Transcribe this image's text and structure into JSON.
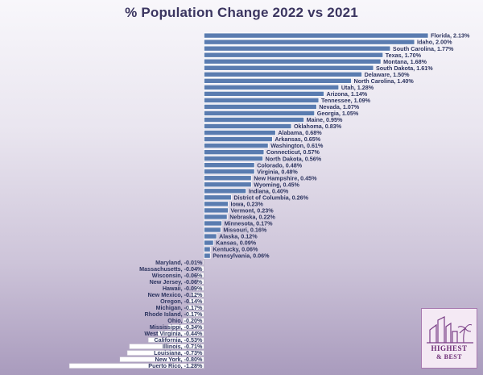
{
  "chart_data": {
    "type": "bar",
    "orientation": "horizontal",
    "title": "% Population Change 2022 vs 2021",
    "label_format": "{category}, {value}%",
    "categories": [
      "Florida",
      "Idaho",
      "South Carolina",
      "Texas",
      "Montana",
      "South Dakota",
      "Delaware",
      "North Carolina",
      "Utah",
      "Arizona",
      "Tennessee",
      "Nevada",
      "Georgia",
      "Maine",
      "Oklahoma",
      "Alabama",
      "Arkansas",
      "Washington",
      "Connecticut",
      "North Dakota",
      "Colorado",
      "Virginia",
      "New Hampshire",
      "Wyoming",
      "Indiana",
      "District of Columbia",
      "Iowa",
      "Vermont",
      "Nebraska",
      "Minnesota",
      "Missouri",
      "Alaska",
      "Kansas",
      "Kentucky",
      "Pennsylvania",
      "Maryland",
      "Massachusetts",
      "Wisconsin",
      "New Jersey",
      "Hawaii",
      "New Mexico",
      "Oregon",
      "Michigan",
      "Rhode Island",
      "Ohio",
      "Mississippi",
      "West Virginia",
      "California",
      "Illinois",
      "Louisiana",
      "New York",
      "Puerto Rico"
    ],
    "values": [
      2.13,
      2.0,
      1.77,
      1.7,
      1.68,
      1.61,
      1.5,
      1.4,
      1.28,
      1.14,
      1.09,
      1.07,
      1.05,
      0.95,
      0.83,
      0.68,
      0.65,
      0.61,
      0.57,
      0.56,
      0.48,
      0.48,
      0.45,
      0.45,
      0.4,
      0.26,
      0.23,
      0.23,
      0.22,
      0.17,
      0.16,
      0.12,
      0.09,
      0.06,
      0.06,
      -0.01,
      -0.04,
      -0.06,
      -0.06,
      -0.09,
      -0.12,
      -0.14,
      -0.17,
      -0.17,
      -0.2,
      -0.34,
      -0.44,
      -0.53,
      -0.71,
      -0.73,
      -0.8,
      -1.28
    ],
    "xlim": [
      -1.28,
      2.13
    ],
    "grid": false,
    "legend": "none"
  },
  "colors": {
    "positive_bar": "#5a7cb0",
    "negative_bar": "#ffffff",
    "label": "#2d3560",
    "title": "#3b3560"
  },
  "logo": {
    "line1": "HIGHEST",
    "line2": "& BEST"
  }
}
